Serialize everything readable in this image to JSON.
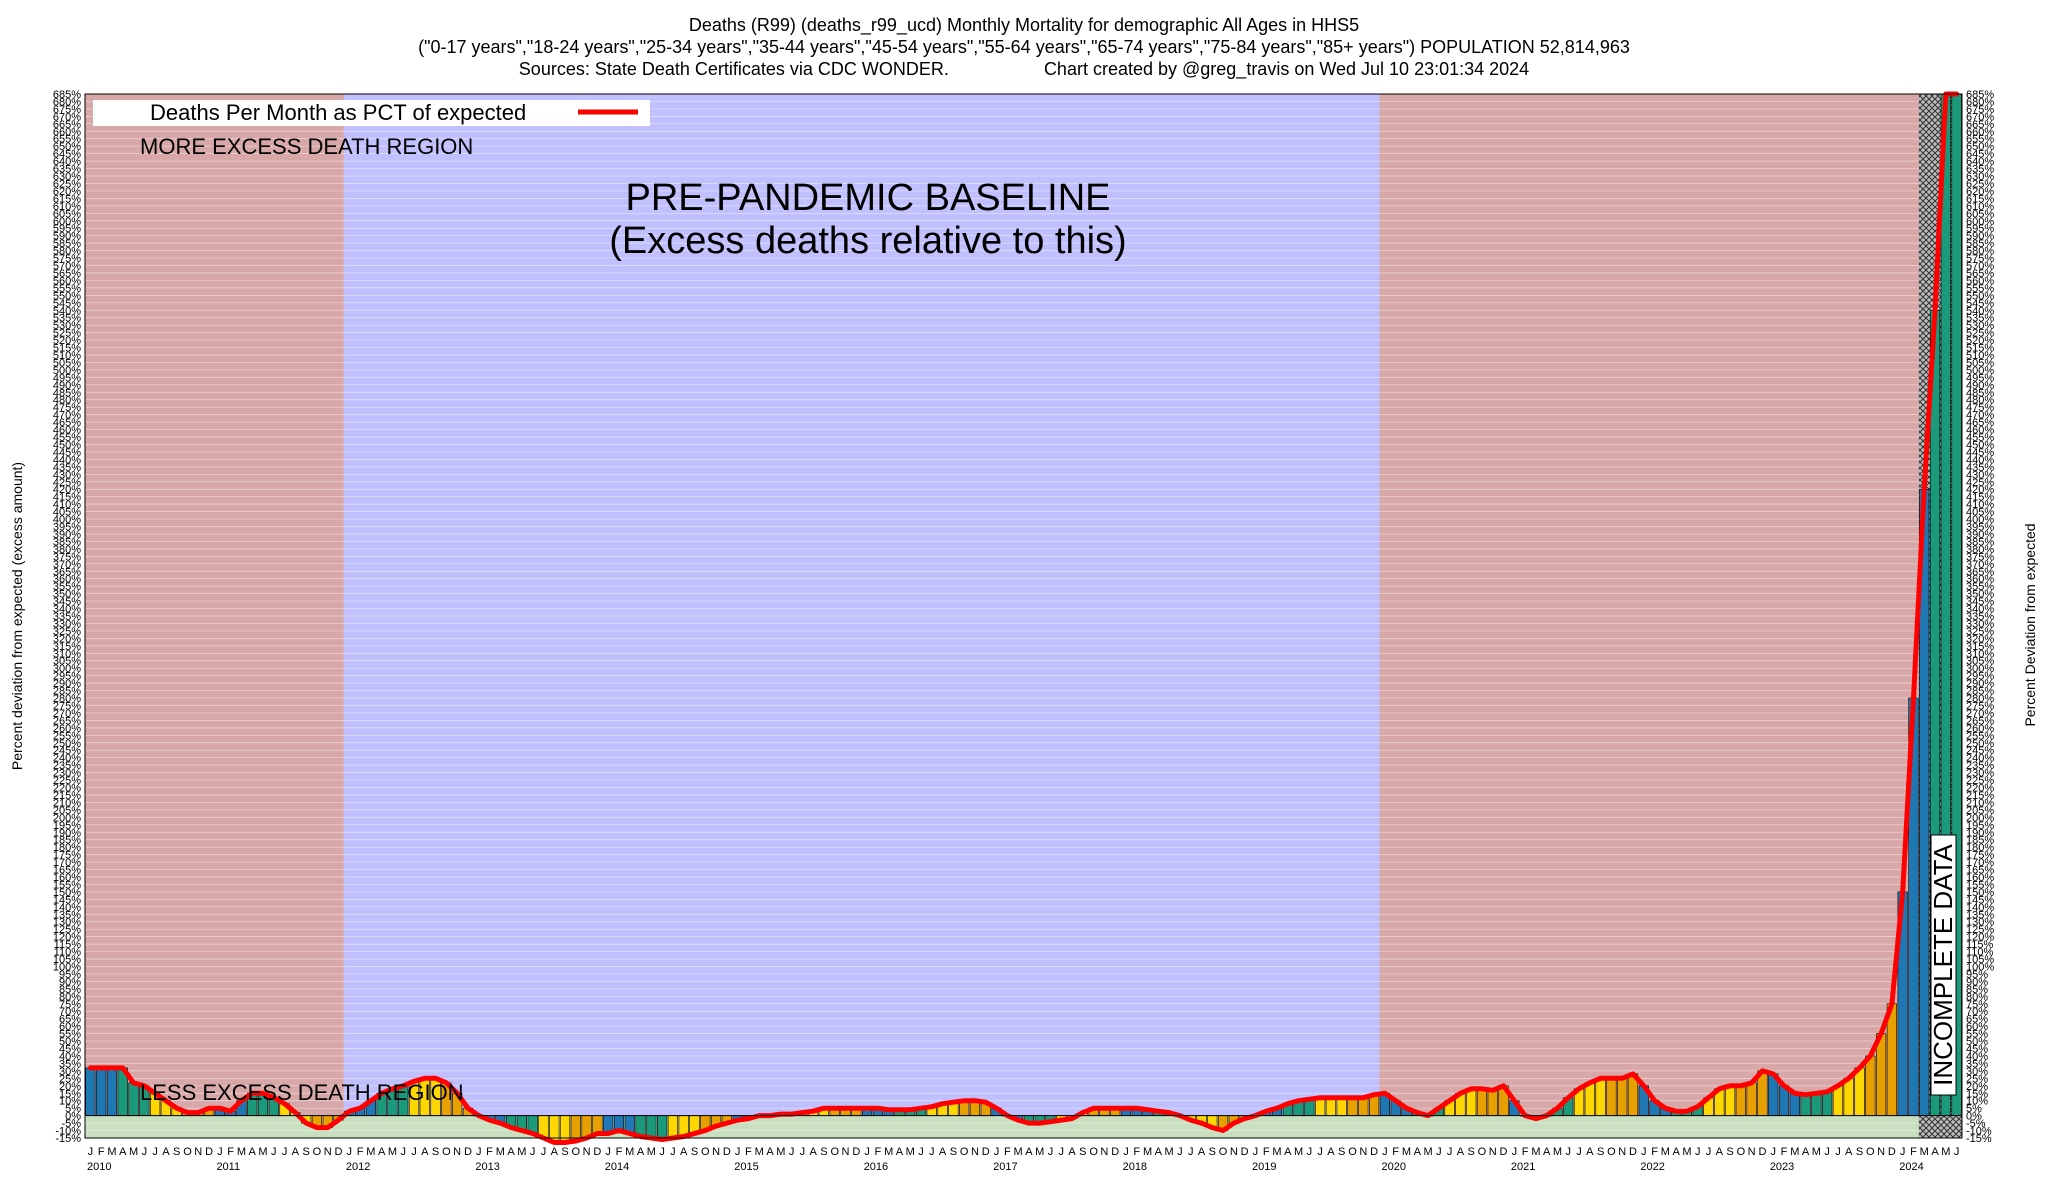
{
  "header": {
    "title": "Deaths (R99) (deaths_r99_ucd) Monthly Mortality for demographic All Ages in HHS5",
    "subtitle": "(\"0-17 years\",\"18-24 years\",\"25-34 years\",\"35-44 years\",\"45-54 years\",\"55-64 years\",\"65-74 years\",\"75-84 years\",\"85+ years\") POPULATION 52,814,963",
    "sources": "Sources: State Death Certificates via CDC WONDER.",
    "credit": "Chart created by @greg_travis on Wed Jul 10 23:01:34 2024"
  },
  "chart_data": {
    "type": "bar",
    "ylabel_left": "Percent deviation from expected (excess amount)",
    "ylabel_right": "Percent Deviation from expected",
    "legend": "Deaths Per Month as PCT of expected",
    "legend_placement": "top-left",
    "grid": true,
    "ylim": [
      -15,
      685
    ],
    "y_tick_step": 5,
    "y_tick_suffix": "%",
    "x_start": "2010-01",
    "month_letters": [
      "J",
      "F",
      "M",
      "A",
      "M",
      "J",
      "J",
      "A",
      "S",
      "O",
      "N",
      "D"
    ],
    "years": [
      "2010",
      "2011",
      "2012",
      "2013",
      "2014",
      "2015",
      "2016",
      "2017",
      "2018",
      "2019",
      "2020",
      "2021",
      "2022",
      "2023",
      "2024"
    ],
    "regions": [
      {
        "label": "MORE EXCESS DEATH REGION",
        "type": "excess",
        "from": "2010-01",
        "to": "2011-12",
        "color": "#d8a8a8"
      },
      {
        "label": "PRE-PANDEMIC BASELINE\n(Excess deaths relative to this)",
        "type": "baseline",
        "from": "2012-01",
        "to": "2019-12",
        "color": "#c0c0ff"
      },
      {
        "type": "excess",
        "from": "2020-01",
        "to": "2024-06",
        "color": "#d8a8a8"
      }
    ],
    "below_label": "LESS EXCESS DEATH REGION",
    "incomplete_label": "INCOMPLETE DATA",
    "incomplete_from": "2024-03",
    "line_color": "#ff0000",
    "bar_colors": [
      "#1f77b4",
      "#1a9a7a",
      "#ffd700",
      "#e6a000"
    ],
    "values": [
      32,
      32,
      32,
      32,
      22,
      20,
      15,
      10,
      5,
      2,
      2,
      5,
      5,
      3,
      10,
      15,
      15,
      12,
      8,
      2,
      -5,
      -8,
      -8,
      -3,
      3,
      5,
      10,
      15,
      18,
      20,
      23,
      25,
      25,
      22,
      15,
      5,
      0,
      -3,
      -5,
      -8,
      -10,
      -12,
      -15,
      -18,
      -18,
      -17,
      -15,
      -12,
      -12,
      -10,
      -12,
      -14,
      -15,
      -16,
      -15,
      -14,
      -12,
      -10,
      -7,
      -5,
      -3,
      -2,
      0,
      0,
      1,
      1,
      2,
      3,
      5,
      5,
      5,
      5,
      5,
      5,
      4,
      4,
      4,
      5,
      6,
      8,
      9,
      10,
      10,
      9,
      5,
      0,
      -3,
      -5,
      -5,
      -4,
      -3,
      -2,
      2,
      5,
      5,
      5,
      5,
      5,
      4,
      3,
      2,
      0,
      -3,
      -5,
      -8,
      -10,
      -5,
      -2,
      0,
      3,
      5,
      8,
      10,
      11,
      12,
      12,
      12,
      12,
      12,
      14,
      15,
      10,
      5,
      2,
      0,
      5,
      10,
      15,
      18,
      18,
      17,
      20,
      10,
      0,
      -2,
      0,
      5,
      12,
      18,
      22,
      25,
      25,
      25,
      28,
      20,
      10,
      5,
      3,
      3,
      6,
      12,
      18,
      20,
      20,
      22,
      30,
      28,
      20,
      15,
      14,
      15,
      16,
      20,
      25,
      32,
      40,
      55,
      75,
      150,
      280,
      420,
      540,
      685,
      685
    ]
  }
}
